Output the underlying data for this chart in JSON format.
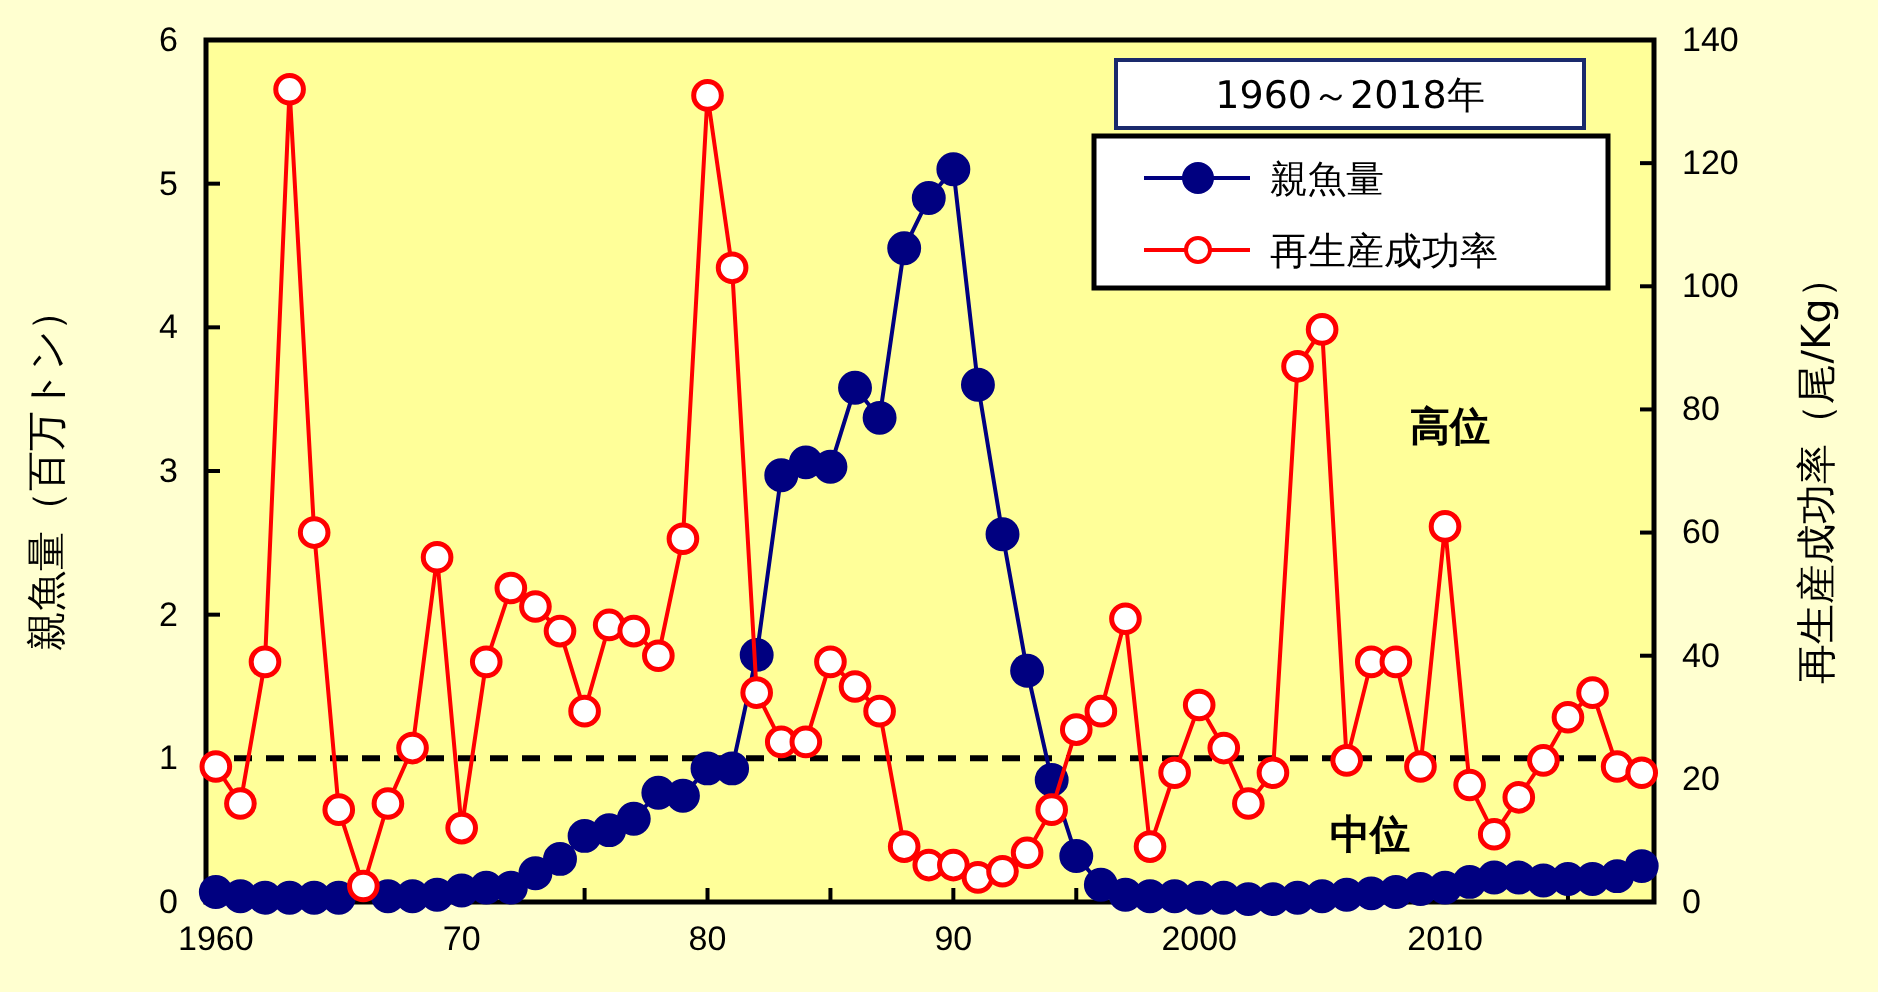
{
  "chart_data": {
    "type": "line",
    "xlabel": null,
    "ylabel": "親魚量（百万トン）",
    "y2label": "再生産成功率（尾/Kg）",
    "legend_title": "1960～2018年",
    "legend": "top right",
    "marker": "circle",
    "line_style": "solid",
    "grid": false,
    "x": [
      1960,
      1961,
      1962,
      1963,
      1964,
      1965,
      1966,
      1967,
      1968,
      1969,
      1970,
      1971,
      1972,
      1973,
      1974,
      1975,
      1976,
      1977,
      1978,
      1979,
      1980,
      1981,
      1982,
      1983,
      1984,
      1985,
      1986,
      1987,
      1988,
      1989,
      1990,
      1991,
      1992,
      1993,
      1994,
      1995,
      1996,
      1997,
      1998,
      1999,
      2000,
      2001,
      2002,
      2003,
      2004,
      2005,
      2006,
      2007,
      2008,
      2009,
      2010,
      2011,
      2012,
      2013,
      2014,
      2015,
      2016,
      2017,
      2018
    ],
    "xlim": [
      1959.6,
      2018.5
    ],
    "xticks": [
      1960,
      {
        "value": 1965,
        "label": null
      },
      {
        "value": 1970,
        "label": "70"
      },
      {
        "value": 1975,
        "label": null
      },
      {
        "value": 1980,
        "label": "80"
      },
      {
        "value": 1985,
        "label": null
      },
      {
        "value": 1990,
        "label": "90"
      },
      {
        "value": 1995,
        "label": null
      },
      2000,
      {
        "value": 2005,
        "label": null
      },
      2010,
      {
        "value": 2015,
        "label": null
      }
    ],
    "ylim": [
      0,
      6
    ],
    "yticks": [
      0,
      1,
      2,
      3,
      4,
      5,
      6
    ],
    "y2lim": [
      0,
      140
    ],
    "y2ticks": [
      0,
      20,
      40,
      60,
      80,
      100,
      120,
      140
    ],
    "series": [
      {
        "name": "親魚量",
        "color": "#000080",
        "values": [
          0.07,
          0.04,
          0.03,
          0.03,
          0.03,
          0.03,
          null,
          0.04,
          0.04,
          0.05,
          0.08,
          0.1,
          0.1,
          0.2,
          0.3,
          0.46,
          0.5,
          0.58,
          0.76,
          0.74,
          0.93,
          0.93,
          1.72,
          2.97,
          3.06,
          3.03,
          3.58,
          3.37,
          4.55,
          4.9,
          5.1,
          3.6,
          2.56,
          1.61,
          0.85,
          0.32,
          0.12,
          0.05,
          0.04,
          0.04,
          0.03,
          0.03,
          0.02,
          0.02,
          0.03,
          0.04,
          0.05,
          0.06,
          0.07,
          0.09,
          0.1,
          0.14,
          0.17,
          0.17,
          0.15,
          0.16,
          0.16,
          0.18,
          0.25
        ]
      },
      {
        "name": "再生産成功率",
        "color": "#ff0000",
        "axis": "y2",
        "values": [
          22,
          16,
          39,
          132,
          60,
          15,
          2.6,
          16,
          25,
          56,
          12,
          39,
          51,
          48,
          44,
          31,
          45,
          44,
          40,
          59,
          131,
          103,
          34,
          26,
          26,
          39,
          35,
          31,
          9,
          6,
          6,
          4,
          5,
          8,
          15,
          28,
          31,
          46,
          9,
          21,
          32,
          25,
          16,
          21,
          87,
          93,
          23,
          39,
          39,
          22,
          61,
          19,
          11,
          17,
          23,
          30,
          34,
          22,
          21
        ]
      }
    ],
    "ref_lines": [
      {
        "axis": "y",
        "value": 1,
        "label": null,
        "color": "#000000",
        "line_style": "dashed"
      }
    ],
    "annotations": [
      "高位",
      "中位"
    ]
  }
}
